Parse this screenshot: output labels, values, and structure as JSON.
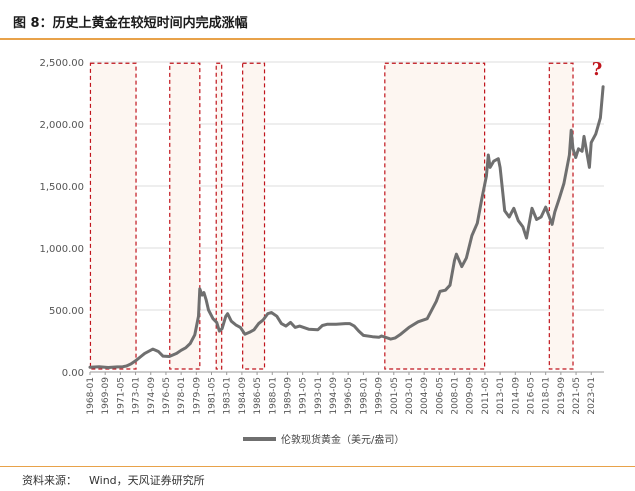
{
  "figure": {
    "title": "图 8：历史上黄金在较短时间内完成涨幅",
    "source_label": "资料来源：",
    "source_value": "Wind，天风证券研究所"
  },
  "colors": {
    "line": "#6f6f6f",
    "box_stroke": "#c0141c",
    "box_fill": "#fdf6f1",
    "accent_rule": "#e8a24a",
    "question": "#c0141c"
  },
  "chart_data": {
    "type": "line",
    "title": "",
    "xlabel": "",
    "ylabel": "",
    "ylim": [
      0,
      2500
    ],
    "yticks": [
      "0.00",
      "500.00",
      "1,000.00",
      "1,500.00",
      "2,000.00",
      "2,500.00"
    ],
    "xticks": [
      "1968-01",
      "1969-09",
      "1971-05",
      "1973-01",
      "1974-09",
      "1976-05",
      "1978-01",
      "1979-09",
      "1981-05",
      "1983-01",
      "1984-09",
      "1986-05",
      "1988-01",
      "1989-09",
      "1991-05",
      "1993-01",
      "1994-09",
      "1996-05",
      "1998-01",
      "1999-09",
      "2001-05",
      "2003-01",
      "2004-09",
      "2006-05",
      "2008-01",
      "2009-09",
      "2011-05",
      "2013-01",
      "2014-09",
      "2016-05",
      "2018-01",
      "2019-09",
      "2021-05",
      "2023-01"
    ],
    "legend": "bottom-center",
    "grid": "horizontal",
    "annotation": "?",
    "series": [
      {
        "name": "伦敦现货黄金（美元/盎司）",
        "x": [
          1968.0,
          1969.0,
          1970.0,
          1971.0,
          1971.6,
          1972.0,
          1972.5,
          1973.0,
          1973.5,
          1974.0,
          1974.9,
          1975.5,
          1976.0,
          1976.7,
          1977.5,
          1978.0,
          1978.5,
          1979.0,
          1979.5,
          1979.9,
          1980.05,
          1980.3,
          1980.5,
          1980.75,
          1981.0,
          1981.5,
          1981.9,
          1982.2,
          1982.5,
          1982.9,
          1983.1,
          1983.5,
          1984.0,
          1984.5,
          1985.0,
          1985.5,
          1986.0,
          1986.5,
          1987.0,
          1987.5,
          1987.9,
          1988.5,
          1989.0,
          1989.5,
          1990.0,
          1990.5,
          1991.0,
          1992.0,
          1993.0,
          1993.5,
          1994.0,
          1995.0,
          1996.0,
          1996.5,
          1997.0,
          1997.5,
          1998.0,
          1999.0,
          1999.7,
          2000.0,
          2001.0,
          2001.5,
          2002.0,
          2003.0,
          2004.0,
          2005.0,
          2006.0,
          2006.4,
          2007.0,
          2007.5,
          2008.0,
          2008.2,
          2008.8,
          2009.3,
          2009.9,
          2010.5,
          2011.0,
          2011.5,
          2011.7,
          2011.9,
          2012.3,
          2012.8,
          2013.0,
          2013.5,
          2014.0,
          2014.5,
          2015.0,
          2015.5,
          2015.9,
          2016.5,
          2017.0,
          2017.5,
          2018.0,
          2018.7,
          2019.0,
          2019.5,
          2020.0,
          2020.6,
          2020.8,
          2021.0,
          2021.3,
          2021.6,
          2022.0,
          2022.2,
          2022.8,
          2023.0,
          2023.5,
          2024.0,
          2024.3
        ],
        "y": [
          39,
          42,
          36,
          41,
          43,
          48,
          65,
          90,
          120,
          150,
          185,
          165,
          128,
          125,
          150,
          175,
          195,
          230,
          300,
          450,
          670,
          620,
          640,
          580,
          500,
          430,
          400,
          330,
          350,
          450,
          470,
          410,
          380,
          360,
          305,
          320,
          340,
          390,
          420,
          470,
          480,
          450,
          390,
          370,
          400,
          360,
          370,
          345,
          340,
          375,
          385,
          385,
          390,
          390,
          370,
          330,
          295,
          285,
          280,
          290,
          265,
          275,
          300,
          360,
          405,
          430,
          570,
          650,
          660,
          700,
          900,
          950,
          850,
          920,
          1100,
          1200,
          1400,
          1580,
          1750,
          1650,
          1700,
          1720,
          1650,
          1300,
          1250,
          1320,
          1220,
          1170,
          1080,
          1320,
          1230,
          1250,
          1330,
          1190,
          1290,
          1400,
          1520,
          1750,
          1950,
          1800,
          1730,
          1800,
          1780,
          1900,
          1650,
          1850,
          1920,
          2050,
          2300
        ]
      }
    ]
  }
}
